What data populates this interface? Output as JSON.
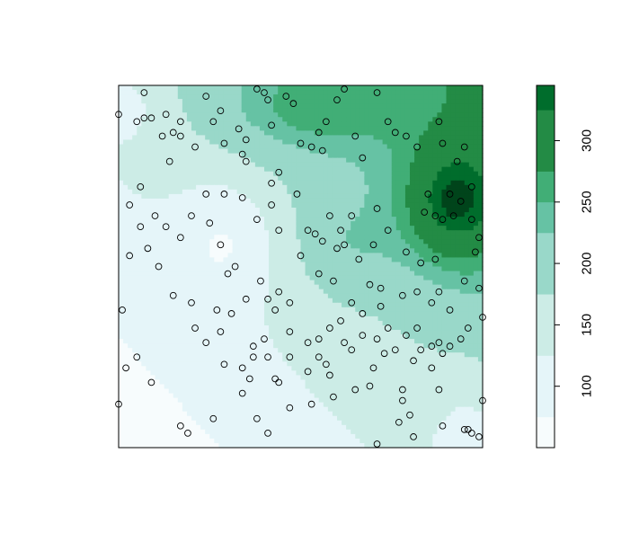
{
  "chart_data": {
    "type": "filled-contour-with-scatter",
    "title": "",
    "xlabel": "",
    "ylabel": "",
    "legend": {
      "position": "right",
      "levels": [
        50,
        75,
        125,
        175,
        225,
        250,
        275,
        325,
        345
      ],
      "colors": [
        "#f7fcfd",
        "#e5f5f9",
        "#ccece6",
        "#99d8c9",
        "#66c2a4",
        "#41ae76",
        "#238b45",
        "#006d2c",
        "#00441b"
      ],
      "range": [
        50,
        345
      ],
      "ticks": [
        100,
        150,
        200,
        250,
        300
      ],
      "tick_labels": [
        "100",
        "150",
        "200",
        "250",
        "300"
      ]
    },
    "surface": {
      "description": "kriged surface over unit square, low in lower-left, high in upper-right",
      "grid_cols": 80,
      "grid_rows": 80
    },
    "points": [
      [
        0.0,
        0.92
      ],
      [
        0.07,
        0.98
      ],
      [
        0.07,
        0.91
      ],
      [
        0.05,
        0.9
      ],
      [
        0.09,
        0.91
      ],
      [
        0.12,
        0.86
      ],
      [
        0.13,
        0.92
      ],
      [
        0.15,
        0.87
      ],
      [
        0.14,
        0.79
      ],
      [
        0.17,
        0.9
      ],
      [
        0.17,
        0.86
      ],
      [
        0.24,
        0.97
      ],
      [
        0.21,
        0.83
      ],
      [
        0.26,
        0.9
      ],
      [
        0.28,
        0.93
      ],
      [
        0.29,
        0.84
      ],
      [
        0.33,
        0.88
      ],
      [
        0.35,
        0.85
      ],
      [
        0.34,
        0.81
      ],
      [
        0.38,
        0.99
      ],
      [
        0.4,
        0.98
      ],
      [
        0.41,
        0.96
      ],
      [
        0.42,
        0.89
      ],
      [
        0.46,
        0.97
      ],
      [
        0.48,
        0.95
      ],
      [
        0.5,
        0.84
      ],
      [
        0.53,
        0.83
      ],
      [
        0.55,
        0.87
      ],
      [
        0.56,
        0.82
      ],
      [
        0.57,
        0.9
      ],
      [
        0.6,
        0.96
      ],
      [
        0.62,
        0.99
      ],
      [
        0.65,
        0.86
      ],
      [
        0.67,
        0.8
      ],
      [
        0.71,
        0.98
      ],
      [
        0.74,
        0.9
      ],
      [
        0.76,
        0.87
      ],
      [
        0.79,
        0.86
      ],
      [
        0.82,
        0.83
      ],
      [
        0.88,
        0.9
      ],
      [
        0.89,
        0.84
      ],
      [
        0.93,
        0.79
      ],
      [
        0.95,
        0.83
      ],
      [
        0.97,
        0.72
      ],
      [
        0.85,
        0.7
      ],
      [
        0.84,
        0.65
      ],
      [
        0.87,
        0.64
      ],
      [
        0.91,
        0.7
      ],
      [
        0.89,
        0.63
      ],
      [
        0.92,
        0.64
      ],
      [
        0.94,
        0.68
      ],
      [
        0.97,
        0.63
      ],
      [
        0.99,
        0.58
      ],
      [
        0.98,
        0.54
      ],
      [
        0.87,
        0.52
      ],
      [
        0.83,
        0.51
      ],
      [
        0.79,
        0.54
      ],
      [
        0.82,
        0.43
      ],
      [
        0.88,
        0.43
      ],
      [
        0.95,
        0.46
      ],
      [
        0.99,
        0.44
      ],
      [
        1.0,
        0.36
      ],
      [
        0.94,
        0.3
      ],
      [
        0.88,
        0.29
      ],
      [
        0.86,
        0.28
      ],
      [
        0.82,
        0.33
      ],
      [
        0.78,
        0.42
      ],
      [
        0.72,
        0.44
      ],
      [
        0.71,
        0.66
      ],
      [
        0.74,
        0.6
      ],
      [
        0.7,
        0.56
      ],
      [
        0.64,
        0.64
      ],
      [
        0.61,
        0.6
      ],
      [
        0.62,
        0.56
      ],
      [
        0.58,
        0.64
      ],
      [
        0.56,
        0.57
      ],
      [
        0.55,
        0.48
      ],
      [
        0.59,
        0.46
      ],
      [
        0.64,
        0.4
      ],
      [
        0.67,
        0.37
      ],
      [
        0.61,
        0.35
      ],
      [
        0.58,
        0.33
      ],
      [
        0.55,
        0.3
      ],
      [
        0.62,
        0.29
      ],
      [
        0.64,
        0.27
      ],
      [
        0.57,
        0.23
      ],
      [
        0.52,
        0.29
      ],
      [
        0.47,
        0.32
      ],
      [
        0.43,
        0.38
      ],
      [
        0.41,
        0.41
      ],
      [
        0.39,
        0.46
      ],
      [
        0.35,
        0.41
      ],
      [
        0.32,
        0.5
      ],
      [
        0.3,
        0.48
      ],
      [
        0.28,
        0.56
      ],
      [
        0.25,
        0.62
      ],
      [
        0.24,
        0.7
      ],
      [
        0.29,
        0.7
      ],
      [
        0.34,
        0.69
      ],
      [
        0.38,
        0.63
      ],
      [
        0.42,
        0.67
      ],
      [
        0.44,
        0.6
      ],
      [
        0.42,
        0.73
      ],
      [
        0.49,
        0.7
      ],
      [
        0.35,
        0.79
      ],
      [
        0.44,
        0.76
      ],
      [
        0.2,
        0.64
      ],
      [
        0.17,
        0.58
      ],
      [
        0.13,
        0.61
      ],
      [
        0.1,
        0.64
      ],
      [
        0.06,
        0.61
      ],
      [
        0.03,
        0.67
      ],
      [
        0.01,
        0.38
      ],
      [
        0.06,
        0.72
      ],
      [
        0.03,
        0.53
      ],
      [
        0.08,
        0.55
      ],
      [
        0.11,
        0.5
      ],
      [
        0.15,
        0.42
      ],
      [
        0.2,
        0.4
      ],
      [
        0.27,
        0.38
      ],
      [
        0.28,
        0.32
      ],
      [
        0.29,
        0.23
      ],
      [
        0.34,
        0.22
      ],
      [
        0.36,
        0.19
      ],
      [
        0.41,
        0.25
      ],
      [
        0.44,
        0.18
      ],
      [
        0.47,
        0.11
      ],
      [
        0.53,
        0.12
      ],
      [
        0.59,
        0.14
      ],
      [
        0.65,
        0.16
      ],
      [
        0.78,
        0.13
      ],
      [
        0.8,
        0.09
      ],
      [
        0.77,
        0.07
      ],
      [
        0.81,
        0.03
      ],
      [
        0.89,
        0.06
      ],
      [
        0.95,
        0.05
      ],
      [
        0.97,
        0.04
      ],
      [
        0.99,
        0.03
      ],
      [
        1.0,
        0.13
      ],
      [
        0.96,
        0.05
      ],
      [
        0.71,
        0.01
      ],
      [
        0.41,
        0.04
      ],
      [
        0.34,
        0.15
      ],
      [
        0.26,
        0.08
      ],
      [
        0.17,
        0.06
      ],
      [
        0.19,
        0.04
      ],
      [
        0.05,
        0.25
      ],
      [
        0.02,
        0.22
      ],
      [
        0.09,
        0.18
      ],
      [
        0.0,
        0.12
      ],
      [
        0.21,
        0.33
      ],
      [
        0.24,
        0.29
      ],
      [
        0.38,
        0.08
      ],
      [
        0.47,
        0.25
      ],
      [
        0.52,
        0.21
      ],
      [
        0.55,
        0.25
      ],
      [
        0.58,
        0.2
      ],
      [
        0.67,
        0.31
      ],
      [
        0.71,
        0.3
      ],
      [
        0.76,
        0.27
      ],
      [
        0.81,
        0.24
      ],
      [
        0.86,
        0.22
      ],
      [
        0.89,
        0.26
      ],
      [
        0.91,
        0.28
      ],
      [
        0.96,
        0.33
      ],
      [
        0.44,
        0.43
      ],
      [
        0.5,
        0.53
      ],
      [
        0.52,
        0.6
      ],
      [
        0.54,
        0.59
      ],
      [
        0.6,
        0.55
      ],
      [
        0.66,
        0.52
      ],
      [
        0.69,
        0.45
      ],
      [
        0.72,
        0.39
      ],
      [
        0.74,
        0.33
      ],
      [
        0.79,
        0.31
      ],
      [
        0.83,
        0.27
      ],
      [
        0.86,
        0.4
      ],
      [
        0.91,
        0.38
      ],
      [
        0.47,
        0.4
      ],
      [
        0.31,
        0.37
      ],
      [
        0.37,
        0.28
      ],
      [
        0.43,
        0.19
      ],
      [
        0.69,
        0.17
      ],
      [
        0.7,
        0.22
      ],
      [
        0.78,
        0.16
      ],
      [
        0.88,
        0.16
      ],
      [
        0.73,
        0.26
      ],
      [
        0.37,
        0.25
      ],
      [
        0.4,
        0.3
      ]
    ]
  }
}
